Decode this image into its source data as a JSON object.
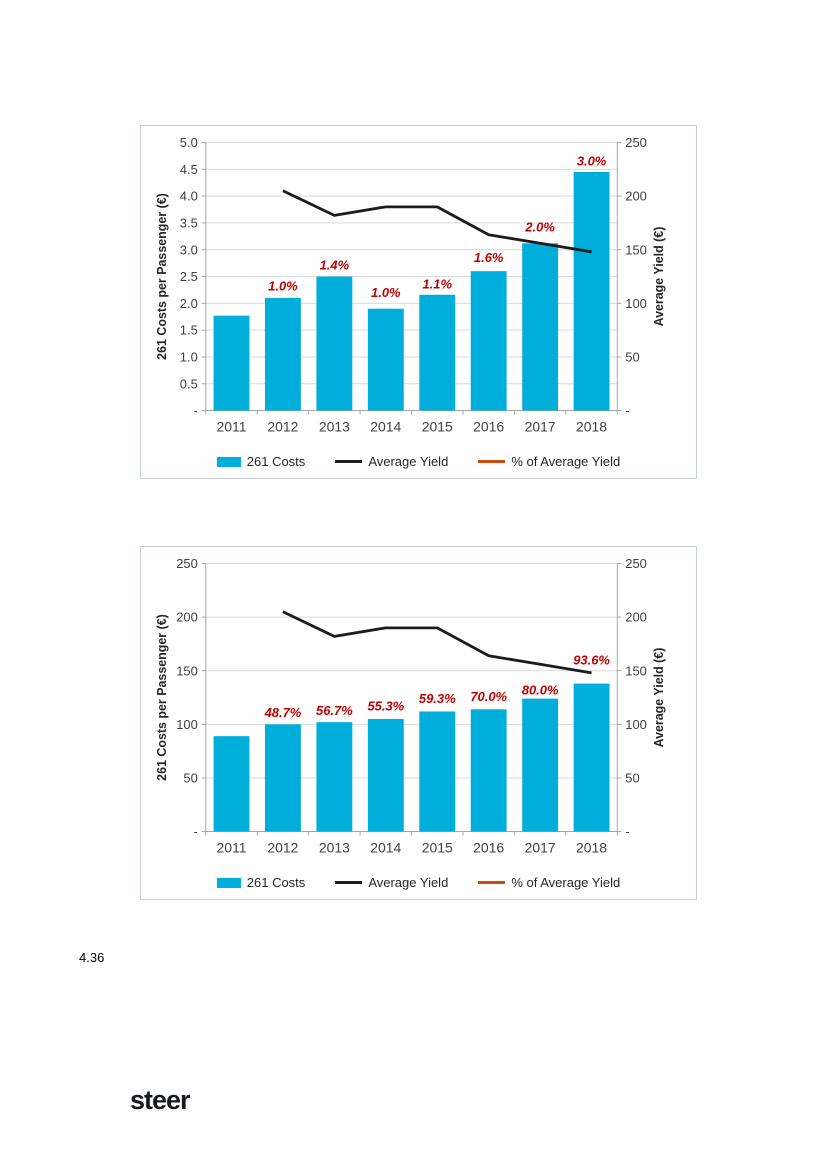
{
  "page": {
    "paragraph_number": "4.36",
    "logo_text": "steer"
  },
  "colors": {
    "bar": "#00AEDC",
    "yield_line": "#1C1C1C",
    "pct_label": "#C00000",
    "pct_line": "#CB4A0E",
    "gridline": "#D9D9D9",
    "axis_line": "#A6A6A6",
    "tick_text": "#404040",
    "title_text": "#262626",
    "chart_border": "#C9D0D7",
    "logo": "#171A21"
  },
  "chart_data": [
    {
      "type": "bar",
      "subtype": "combo-bar-line-dual-axis",
      "title": "",
      "categories": [
        "2011",
        "2012",
        "2013",
        "2014",
        "2015",
        "2016",
        "2017",
        "2018"
      ],
      "series": [
        {
          "name": "261 Costs",
          "kind": "bar",
          "axis": "left",
          "values": [
            1.77,
            2.1,
            2.5,
            1.9,
            2.16,
            2.6,
            3.12,
            4.45
          ]
        },
        {
          "name": "Average Yield",
          "kind": "line",
          "axis": "right",
          "values": [
            null,
            205,
            182,
            190,
            190,
            164,
            156,
            148
          ]
        },
        {
          "name": "% of Average Yield",
          "kind": "point-labels",
          "labels": [
            null,
            "1.0%",
            "1.4%",
            "1.0%",
            "1.1%",
            "1.6%",
            "2.0%",
            "3.0%"
          ],
          "label_anchor_left_axis": [
            null,
            2.32,
            2.72,
            2.2,
            2.36,
            2.86,
            3.42,
            4.66
          ]
        }
      ],
      "left_axis": {
        "title": "261 Costs per Passenger (€)",
        "min": 0,
        "max": 5,
        "tick_labels": [
          "5.0",
          "4.5",
          "4.0",
          "3.5",
          "3.0",
          "2.5",
          "2.0",
          "1.5",
          "1.0",
          "0.5",
          "-"
        ]
      },
      "right_axis": {
        "title": "Average Yield (€)",
        "min": 0,
        "max": 250,
        "tick_labels": [
          "250",
          "200",
          "150",
          "100",
          "50",
          "-"
        ]
      },
      "grid": true,
      "legend_position": "bottom",
      "legend": [
        {
          "label": "261 Costs",
          "swatch": "bar"
        },
        {
          "label": "Average Yield",
          "swatch": "line-black"
        },
        {
          "label": "% of Average Yield",
          "swatch": "line-orange"
        }
      ]
    },
    {
      "type": "bar",
      "subtype": "combo-bar-line-dual-axis",
      "title": "",
      "categories": [
        "2011",
        "2012",
        "2013",
        "2014",
        "2015",
        "2016",
        "2017",
        "2018"
      ],
      "series": [
        {
          "name": "261 Costs",
          "kind": "bar",
          "axis": "left",
          "values": [
            89,
            100,
            102,
            105,
            112,
            114,
            124,
            138
          ]
        },
        {
          "name": "Average Yield",
          "kind": "line",
          "axis": "right",
          "values": [
            null,
            205,
            182,
            190,
            190,
            164,
            156,
            148
          ]
        },
        {
          "name": "% of Average Yield",
          "kind": "point-labels",
          "labels": [
            null,
            "48.7%",
            "56.7%",
            "55.3%",
            "59.3%",
            "70.0%",
            "80.0%",
            "93.6%"
          ],
          "label_anchor_left_axis": [
            null,
            111,
            113,
            117,
            124,
            126,
            132,
            160
          ]
        }
      ],
      "left_axis": {
        "title": "261 Costs per Passenger (€)",
        "min": 0,
        "max": 250,
        "tick_labels": [
          "250",
          "200",
          "150",
          "100",
          "50",
          "-"
        ]
      },
      "right_axis": {
        "title": "Average Yield (€)",
        "min": 0,
        "max": 250,
        "tick_labels": [
          "250",
          "200",
          "150",
          "100",
          "50",
          "-"
        ]
      },
      "grid": true,
      "legend_position": "bottom",
      "legend": [
        {
          "label": "261 Costs",
          "swatch": "bar"
        },
        {
          "label": "Average Yield",
          "swatch": "line-black"
        },
        {
          "label": "% of Average Yield",
          "swatch": "line-orange"
        }
      ]
    }
  ]
}
